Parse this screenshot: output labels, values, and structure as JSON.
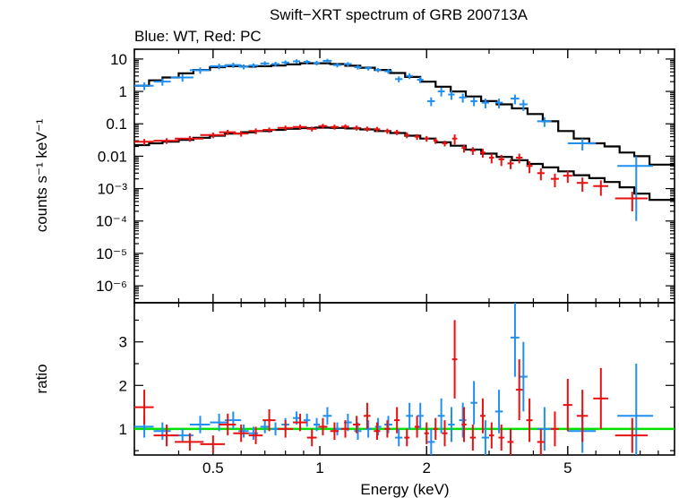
{
  "chart_data": {
    "type": "scatter",
    "title": "Swift−XRT spectrum of GRB 200713A",
    "subtitle": "Blue: WT, Red: PC",
    "xlabel": "Energy (keV)",
    "xscale": "log",
    "xlim": [
      0.3,
      10
    ],
    "x_ticks": [
      {
        "v": 0.5,
        "label": "0.5"
      },
      {
        "v": 1,
        "label": "1"
      },
      {
        "v": 2,
        "label": "2"
      },
      {
        "v": 5,
        "label": "5"
      }
    ],
    "top_panel": {
      "ylabel": "counts s⁻¹ keV⁻¹",
      "yscale": "log",
      "ylim": [
        3e-07,
        20
      ],
      "y_ticks": [
        {
          "v": 10,
          "label": "10"
        },
        {
          "v": 1,
          "label": "1"
        },
        {
          "v": 0.1,
          "label": "0.1"
        },
        {
          "v": 0.01,
          "label": "0.01"
        },
        {
          "v": 0.001,
          "label": "10⁻³"
        },
        {
          "v": 0.0001,
          "label": "10⁻⁴"
        },
        {
          "v": 1e-05,
          "label": "10⁻⁵"
        },
        {
          "v": 1e-06,
          "label": "10⁻⁶"
        }
      ]
    },
    "bottom_panel": {
      "ylabel": "ratio",
      "yscale": "linear",
      "ylim": [
        0.4,
        3.9
      ],
      "y_ticks": [
        {
          "v": 1,
          "label": "1"
        },
        {
          "v": 2,
          "label": "2"
        },
        {
          "v": 3,
          "label": "3"
        }
      ],
      "reference_line": {
        "value": 1,
        "color": "#00e000"
      }
    },
    "series": [
      {
        "name": "WT",
        "color": "#1f8ff0",
        "spectrum": [
          [
            0.32,
            1.5,
            0.02,
            0.4
          ],
          [
            0.36,
            2.0,
            0.02,
            0.5
          ],
          [
            0.41,
            2.7,
            0.03,
            0.7
          ],
          [
            0.46,
            4.5,
            0.03,
            1
          ],
          [
            0.52,
            6.0,
            0.03,
            1.2
          ],
          [
            0.57,
            6.5,
            0.03,
            1.2
          ],
          [
            0.61,
            5.8,
            0.02,
            1
          ],
          [
            0.65,
            6.3,
            0.02,
            1
          ],
          [
            0.7,
            7.3,
            0.02,
            1.2
          ],
          [
            0.75,
            7.0,
            0.02,
            1.2
          ],
          [
            0.8,
            7.8,
            0.02,
            1.2
          ],
          [
            0.86,
            8.5,
            0.02,
            1.3
          ],
          [
            0.92,
            8.2,
            0.02,
            1.2
          ],
          [
            0.98,
            7.6,
            0.02,
            1.2
          ],
          [
            1.05,
            8.8,
            0.03,
            1.3
          ],
          [
            1.12,
            6.5,
            0.03,
            1
          ],
          [
            1.2,
            7.0,
            0.03,
            1
          ],
          [
            1.28,
            5.6,
            0.03,
            0.9
          ],
          [
            1.37,
            5.2,
            0.03,
            0.8
          ],
          [
            1.46,
            4.6,
            0.03,
            0.7
          ],
          [
            1.56,
            4.2,
            0.04,
            0.7
          ],
          [
            1.67,
            2.4,
            0.04,
            0.5
          ],
          [
            1.79,
            3.0,
            0.04,
            0.6
          ],
          [
            1.92,
            2.3,
            0.04,
            0.5
          ],
          [
            2.06,
            0.5,
            0.05,
            0.15
          ],
          [
            2.2,
            1.0,
            0.05,
            0.3
          ],
          [
            2.35,
            0.8,
            0.05,
            0.25
          ],
          [
            2.53,
            0.65,
            0.06,
            0.2
          ],
          [
            2.72,
            0.5,
            0.06,
            0.15
          ],
          [
            2.93,
            0.45,
            0.07,
            0.15
          ],
          [
            3.2,
            0.45,
            0.08,
            0.15
          ],
          [
            3.55,
            0.6,
            0.1,
            0.2
          ],
          [
            3.75,
            0.4,
            0.1,
            0.15
          ],
          [
            4.3,
            0.12,
            0.2,
            0.04
          ],
          [
            5.5,
            0.025,
            0.5,
            0.01
          ],
          [
            7.8,
            0.005,
            0.9,
            0.0049
          ]
        ],
        "ratio": [
          [
            0.32,
            1.05,
            0.02,
            0.25
          ],
          [
            0.36,
            0.95,
            0.02,
            0.2
          ],
          [
            0.41,
            0.85,
            0.03,
            0.15
          ],
          [
            0.46,
            1.1,
            0.03,
            0.2
          ],
          [
            0.52,
            1.15,
            0.03,
            0.2
          ],
          [
            0.57,
            1.2,
            0.03,
            0.2
          ],
          [
            0.61,
            0.95,
            0.02,
            0.15
          ],
          [
            0.65,
            0.9,
            0.02,
            0.15
          ],
          [
            0.7,
            1.05,
            0.02,
            0.15
          ],
          [
            0.75,
            1.0,
            0.02,
            0.15
          ],
          [
            0.8,
            1.1,
            0.02,
            0.15
          ],
          [
            0.86,
            1.25,
            0.02,
            0.15
          ],
          [
            0.92,
            1.2,
            0.02,
            0.15
          ],
          [
            0.98,
            1.1,
            0.02,
            0.15
          ],
          [
            1.05,
            1.3,
            0.03,
            0.2
          ],
          [
            1.12,
            1.0,
            0.03,
            0.15
          ],
          [
            1.2,
            1.15,
            0.03,
            0.2
          ],
          [
            1.28,
            0.95,
            0.03,
            0.2
          ],
          [
            1.37,
            1.0,
            0.03,
            0.2
          ],
          [
            1.46,
            1.05,
            0.03,
            0.2
          ],
          [
            1.56,
            1.1,
            0.04,
            0.2
          ],
          [
            1.67,
            0.8,
            0.04,
            0.2
          ],
          [
            1.79,
            1.3,
            0.04,
            0.3
          ],
          [
            1.92,
            1.3,
            0.04,
            0.3
          ],
          [
            2.06,
            0.7,
            0.05,
            0.3
          ],
          [
            2.2,
            1.3,
            0.05,
            0.4
          ],
          [
            2.35,
            1.1,
            0.05,
            0.4
          ],
          [
            2.53,
            1.2,
            0.06,
            0.4
          ],
          [
            2.72,
            1.6,
            0.06,
            0.5
          ],
          [
            2.93,
            0.8,
            0.07,
            0.4
          ],
          [
            3.2,
            1.4,
            0.08,
            0.5
          ],
          [
            3.55,
            3.1,
            0.1,
            0.9
          ],
          [
            3.75,
            2.2,
            0.1,
            0.8
          ],
          [
            4.3,
            1.0,
            0.2,
            0.5
          ],
          [
            5.5,
            0.95,
            0.5,
            0.5
          ],
          [
            7.8,
            1.3,
            0.9,
            1.2
          ]
        ]
      },
      {
        "name": "PC",
        "color": "#e81010",
        "spectrum": [
          [
            0.32,
            0.028,
            0.02,
            0.006
          ],
          [
            0.37,
            0.03,
            0.03,
            0.006
          ],
          [
            0.43,
            0.035,
            0.04,
            0.007
          ],
          [
            0.5,
            0.045,
            0.04,
            0.009
          ],
          [
            0.55,
            0.055,
            0.03,
            0.01
          ],
          [
            0.6,
            0.05,
            0.03,
            0.01
          ],
          [
            0.66,
            0.06,
            0.03,
            0.012
          ],
          [
            0.72,
            0.065,
            0.03,
            0.012
          ],
          [
            0.8,
            0.075,
            0.04,
            0.013
          ],
          [
            0.88,
            0.08,
            0.04,
            0.014
          ],
          [
            0.95,
            0.07,
            0.03,
            0.012
          ],
          [
            1.02,
            0.085,
            0.03,
            0.015
          ],
          [
            1.1,
            0.08,
            0.03,
            0.014
          ],
          [
            1.18,
            0.082,
            0.03,
            0.014
          ],
          [
            1.27,
            0.075,
            0.03,
            0.013
          ],
          [
            1.36,
            0.07,
            0.03,
            0.012
          ],
          [
            1.45,
            0.068,
            0.03,
            0.012
          ],
          [
            1.55,
            0.06,
            0.03,
            0.011
          ],
          [
            1.65,
            0.055,
            0.03,
            0.01
          ],
          [
            1.76,
            0.045,
            0.03,
            0.009
          ],
          [
            1.88,
            0.04,
            0.03,
            0.008
          ],
          [
            2.0,
            0.035,
            0.03,
            0.007
          ],
          [
            2.12,
            0.03,
            0.03,
            0.006
          ],
          [
            2.25,
            0.025,
            0.04,
            0.005
          ],
          [
            2.4,
            0.035,
            0.04,
            0.012
          ],
          [
            2.55,
            0.018,
            0.04,
            0.005
          ],
          [
            2.7,
            0.015,
            0.05,
            0.004
          ],
          [
            2.88,
            0.013,
            0.05,
            0.004
          ],
          [
            3.05,
            0.009,
            0.05,
            0.003
          ],
          [
            3.25,
            0.008,
            0.06,
            0.003
          ],
          [
            3.45,
            0.006,
            0.07,
            0.002
          ],
          [
            3.65,
            0.009,
            0.08,
            0.003
          ],
          [
            3.9,
            0.005,
            0.08,
            0.002
          ],
          [
            4.2,
            0.003,
            0.1,
            0.0012
          ],
          [
            4.6,
            0.002,
            0.12,
            0.0009
          ],
          [
            5.0,
            0.0025,
            0.15,
            0.001
          ],
          [
            5.5,
            0.0015,
            0.2,
            0.0007
          ],
          [
            6.2,
            0.0012,
            0.3,
            0.0006
          ],
          [
            7.6,
            0.0005,
            0.8,
            0.0003
          ]
        ],
        "ratio": [
          [
            0.32,
            1.5,
            0.02,
            0.4
          ],
          [
            0.37,
            0.85,
            0.03,
            0.25
          ],
          [
            0.43,
            0.7,
            0.04,
            0.2
          ],
          [
            0.5,
            0.65,
            0.04,
            0.2
          ],
          [
            0.55,
            1.1,
            0.03,
            0.25
          ],
          [
            0.6,
            0.9,
            0.03,
            0.2
          ],
          [
            0.66,
            0.85,
            0.03,
            0.2
          ],
          [
            0.72,
            1.2,
            0.03,
            0.25
          ],
          [
            0.8,
            1.0,
            0.04,
            0.2
          ],
          [
            0.88,
            1.15,
            0.04,
            0.2
          ],
          [
            0.95,
            0.8,
            0.03,
            0.2
          ],
          [
            1.02,
            1.05,
            0.03,
            0.2
          ],
          [
            1.1,
            0.95,
            0.03,
            0.2
          ],
          [
            1.18,
            1.0,
            0.03,
            0.2
          ],
          [
            1.27,
            1.1,
            0.03,
            0.2
          ],
          [
            1.36,
            1.3,
            0.03,
            0.3
          ],
          [
            1.45,
            0.95,
            0.03,
            0.2
          ],
          [
            1.55,
            1.0,
            0.03,
            0.2
          ],
          [
            1.65,
            1.2,
            0.03,
            0.3
          ],
          [
            1.76,
            0.8,
            0.03,
            0.2
          ],
          [
            1.88,
            1.05,
            0.03,
            0.25
          ],
          [
            2.0,
            0.9,
            0.03,
            0.25
          ],
          [
            2.12,
            1.0,
            0.03,
            0.25
          ],
          [
            2.25,
            0.9,
            0.04,
            0.3
          ],
          [
            2.4,
            2.6,
            0.04,
            0.9
          ],
          [
            2.55,
            1.1,
            0.04,
            0.4
          ],
          [
            2.7,
            0.8,
            0.05,
            0.3
          ],
          [
            2.88,
            1.3,
            0.05,
            0.4
          ],
          [
            3.05,
            0.85,
            0.05,
            0.3
          ],
          [
            3.25,
            0.8,
            0.06,
            0.3
          ],
          [
            3.45,
            0.7,
            0.07,
            0.3
          ],
          [
            3.65,
            1.9,
            0.08,
            0.7
          ],
          [
            3.9,
            1.2,
            0.08,
            0.5
          ],
          [
            4.2,
            0.7,
            0.1,
            0.3
          ],
          [
            4.6,
            1.0,
            0.12,
            0.4
          ],
          [
            5.0,
            1.55,
            0.15,
            0.6
          ],
          [
            5.5,
            1.3,
            0.2,
            0.6
          ],
          [
            6.2,
            1.7,
            0.3,
            0.7
          ],
          [
            7.6,
            0.85,
            0.8,
            0.4
          ]
        ]
      }
    ],
    "models": [
      {
        "name": "WT model",
        "color": "#000000",
        "x": [
          0.3,
          0.33,
          0.36,
          0.4,
          0.44,
          0.49,
          0.54,
          0.6,
          0.66,
          0.73,
          0.8,
          0.88,
          0.97,
          1.07,
          1.18,
          1.3,
          1.43,
          1.58,
          1.74,
          1.92,
          2.12,
          2.34,
          2.58,
          2.85,
          3.15,
          3.48,
          3.85,
          4.25,
          4.7,
          5.2,
          5.75,
          6.35,
          7.0,
          7.7,
          8.5,
          10
        ],
        "y": [
          1.5,
          2.2,
          2.7,
          3.6,
          4.6,
          5.6,
          6.0,
          5.8,
          6.0,
          6.3,
          6.8,
          7.4,
          7.4,
          7.0,
          6.2,
          5.4,
          4.6,
          3.7,
          2.8,
          2.0,
          1.4,
          1.0,
          0.7,
          0.5,
          0.4,
          0.3,
          0.2,
          0.12,
          0.06,
          0.035,
          0.025,
          0.02,
          0.013,
          0.01,
          0.0055,
          0.005
        ]
      },
      {
        "name": "PC model",
        "color": "#000000",
        "x": [
          0.3,
          0.33,
          0.36,
          0.4,
          0.44,
          0.49,
          0.54,
          0.6,
          0.66,
          0.73,
          0.8,
          0.88,
          0.97,
          1.07,
          1.18,
          1.3,
          1.43,
          1.58,
          1.74,
          1.92,
          2.12,
          2.34,
          2.58,
          2.85,
          3.15,
          3.48,
          3.85,
          4.25,
          4.7,
          5.2,
          5.75,
          6.35,
          7.0,
          7.7,
          8.5,
          10
        ],
        "y": [
          0.022,
          0.025,
          0.028,
          0.032,
          0.037,
          0.043,
          0.05,
          0.055,
          0.06,
          0.065,
          0.07,
          0.074,
          0.076,
          0.075,
          0.072,
          0.067,
          0.06,
          0.052,
          0.043,
          0.035,
          0.027,
          0.021,
          0.016,
          0.012,
          0.0095,
          0.0075,
          0.0058,
          0.0045,
          0.0034,
          0.0026,
          0.0021,
          0.0016,
          0.0011,
          0.0007,
          0.00045,
          0.0004
        ]
      }
    ]
  }
}
